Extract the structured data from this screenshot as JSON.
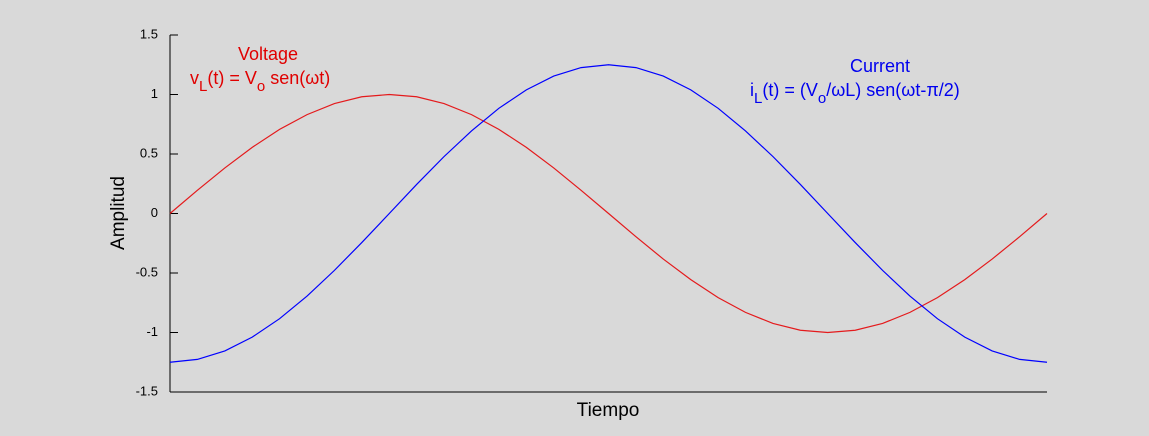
{
  "chart_data": {
    "type": "line",
    "xlabel": "Tiempo",
    "ylabel": "Amplitud",
    "xlim": [
      0,
      6.283
    ],
    "ylim": [
      -1.5,
      1.5
    ],
    "yticks": [
      1.5,
      1,
      0.5,
      0,
      -0.5,
      -1,
      -1.5
    ],
    "x": [
      0,
      0.196,
      0.393,
      0.589,
      0.785,
      0.982,
      1.178,
      1.374,
      1.571,
      1.767,
      1.963,
      2.16,
      2.356,
      2.553,
      2.749,
      2.945,
      3.142,
      3.338,
      3.534,
      3.731,
      3.927,
      4.123,
      4.32,
      4.516,
      4.712,
      4.909,
      5.105,
      5.301,
      5.498,
      5.694,
      5.89,
      6.087,
      6.283
    ],
    "series": [
      {
        "color": "#e41a1c",
        "values": [
          0,
          0.195,
          0.383,
          0.556,
          0.707,
          0.831,
          0.924,
          0.981,
          1,
          0.981,
          0.924,
          0.831,
          0.707,
          0.556,
          0.383,
          0.195,
          0,
          -0.195,
          -0.383,
          -0.556,
          -0.707,
          -0.831,
          -0.924,
          -0.981,
          -1,
          -0.981,
          -0.924,
          -0.831,
          -0.707,
          -0.556,
          -0.383,
          -0.195,
          0
        ]
      },
      {
        "color": "#0000ff",
        "values": [
          -1.25,
          -1.226,
          -1.155,
          -1.039,
          -0.884,
          -0.694,
          -0.478,
          -0.244,
          0,
          0.244,
          0.478,
          0.694,
          0.884,
          1.039,
          1.155,
          1.226,
          1.25,
          1.226,
          1.155,
          1.039,
          0.884,
          0.694,
          0.478,
          0.244,
          0,
          -0.244,
          -0.478,
          -0.694,
          -0.884,
          -1.039,
          -1.155,
          -1.226,
          -1.25
        ]
      }
    ],
    "annotations": [
      {
        "label": "Voltage",
        "formula": [
          "v",
          "L",
          "(t) = V",
          "o",
          " sen(ωt)"
        ],
        "color": "#e00000"
      },
      {
        "label": "Current",
        "formula": [
          "i",
          "L",
          "(t) = (V",
          "o",
          "/ωL) sen(ωt-π/2)"
        ],
        "color": "#0000ee"
      }
    ]
  }
}
